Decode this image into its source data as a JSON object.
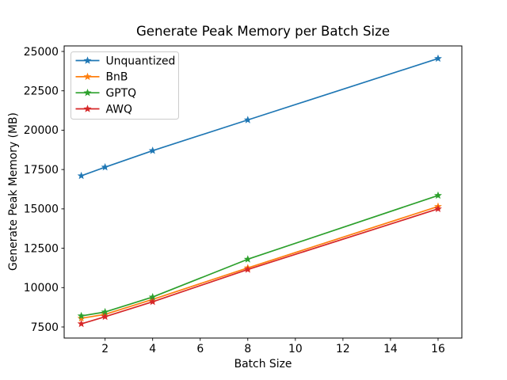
{
  "chart_data": {
    "type": "line",
    "title": "Generate Peak Memory per Batch Size",
    "xlabel": "Batch Size",
    "ylabel": "Generate Peak Memory (MB)",
    "x": [
      1,
      2,
      4,
      8,
      16
    ],
    "series": [
      {
        "name": "Unquantized",
        "color": "#1f77b4",
        "marker": "star",
        "values": [
          17100,
          17650,
          18700,
          20650,
          24550
        ]
      },
      {
        "name": "BnB",
        "color": "#ff7f0e",
        "marker": "star",
        "values": [
          8050,
          8300,
          9250,
          11250,
          15150
        ]
      },
      {
        "name": "GPTQ",
        "color": "#2ca02c",
        "marker": "star",
        "values": [
          8200,
          8450,
          9400,
          11800,
          15850
        ]
      },
      {
        "name": "AWQ",
        "color": "#d62728",
        "marker": "star",
        "values": [
          7700,
          8150,
          9100,
          11150,
          15000
        ]
      }
    ],
    "xticks": [
      2,
      4,
      6,
      8,
      10,
      12,
      14,
      16
    ],
    "yticks": [
      7500,
      10000,
      12500,
      15000,
      17500,
      20000,
      22500,
      25000
    ],
    "xlim": [
      0.28,
      17.0
    ],
    "ylim": [
      6796,
      25352
    ],
    "grid": false,
    "legend_position": "upper left",
    "colors": {
      "spine": "#000000",
      "tick": "#000000",
      "legend_border": "#cccccc",
      "legend_background": "#ffffff",
      "figure_background": "#ffffff"
    }
  }
}
